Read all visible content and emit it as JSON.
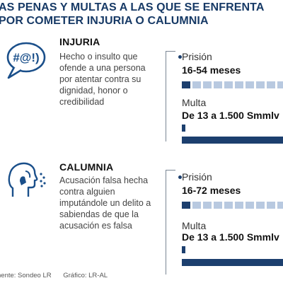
{
  "title": {
    "line1": "AS PENAS Y MULTAS A LAS QUE SE ENFRENTA",
    "line2": "POR COMETER INJURIA O CALUMNIA"
  },
  "sections": [
    {
      "name": "INJURIA",
      "icon": "speech-bubble-symbols-icon",
      "icon_text": "#@!)",
      "description": "Hecho o insulto que ofende a una persona por atentar contra su dignidad, honor o credibilidad",
      "prison_label": "Prisión",
      "prison_value": "16-54 meses",
      "prison_fraction": 0.1,
      "fine_label": "Multa",
      "fine_value": "De 13 a 1.500 Smmlv",
      "fine_fraction_min": 0.009,
      "fine_fraction_max": 1.0
    },
    {
      "name": "CALUMNIA",
      "icon": "whispering-head-icon",
      "description": "Acusación falsa hecha contra alguien imputándole un delito a sabiendas de que la acusación es falsa",
      "prison_label": "Prisión",
      "prison_value": "16-72 meses",
      "prison_fraction": 0.1,
      "fine_label": "Multa",
      "fine_value": "De 13 a 1.500 Smmlv",
      "fine_fraction_min": 0.009,
      "fine_fraction_max": 1.0
    }
  ],
  "footer": {
    "source": "nente: Sondeo LR",
    "graphic": "Gráfico: LR-AL"
  },
  "colors": {
    "title": "#173a66",
    "bar_dark": "#1c3f6e",
    "bar_light": "#b8c9e0",
    "icon": "#1a4f8a"
  }
}
